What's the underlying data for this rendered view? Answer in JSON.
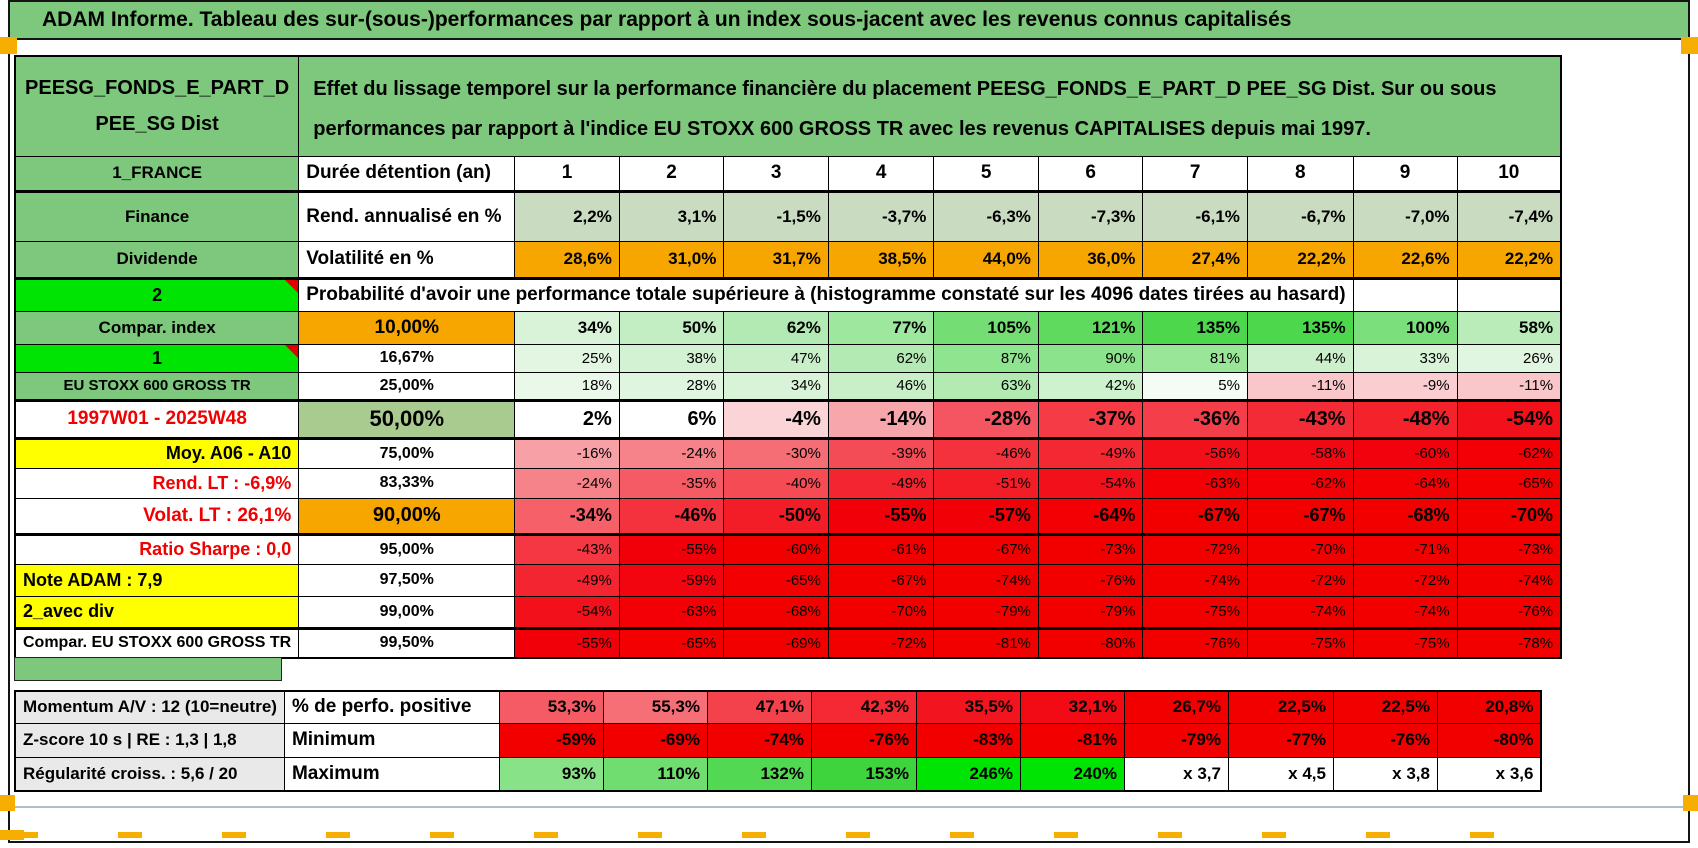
{
  "app": {
    "title": "ADAM Informe. Tableau des sur-(sous-)performances par rapport à un index sous-jacent avec les revenus connus capitalisés"
  },
  "colors": {
    "header_green": "#7DC87D",
    "bright_green": "#00E404",
    "orange": "#F7A600",
    "yellow": "#FFFF00",
    "sage": "#AACB90",
    "muted_row_green": "#C9DCC2",
    "full_red": "#F20000",
    "red_text": "#F00000",
    "gray_label": "#E9E9E9",
    "marker_orange": "#F6AE00"
  },
  "table": {
    "fund_name": "PEESG_FONDS_E_PART_D\nPEE_SG Dist",
    "description": "Effet du lissage temporel sur la performance financière du placement PEESG_FONDS_E_PART_D PEE_SG Dist. Sur ou sous performances par rapport à l'indice EU STOXX 600 GROSS TR avec les revenus CAPITALISES depuis mai 1997.",
    "duration_header": {
      "label": "1_FRANCE",
      "metric": "Durée détention (an)",
      "years": [
        "1",
        "2",
        "3",
        "4",
        "5",
        "6",
        "7",
        "8",
        "9",
        "10"
      ]
    },
    "metric_rows": [
      {
        "label": "Finance",
        "label_bg": "#7DC87D",
        "metric": "Rend. annualisé en %",
        "values": [
          "2,2%",
          "3,1%",
          "-1,5%",
          "-3,7%",
          "-6,3%",
          "-7,3%",
          "-6,1%",
          "-6,7%",
          "-7,0%",
          "-7,4%"
        ],
        "value_bgs": [
          "#C9DCC2",
          "#C9DCC2",
          "#C9DCC2",
          "#C9DCC2",
          "#C9DCC2",
          "#C9DCC2",
          "#C9DCC2",
          "#C9DCC2",
          "#C9DCC2",
          "#C9DCC2"
        ]
      },
      {
        "label": "Dividende",
        "label_bg": "#7DC87D",
        "metric": "Volatilité en %",
        "values": [
          "28,6%",
          "31,0%",
          "31,7%",
          "38,5%",
          "44,0%",
          "36,0%",
          "27,4%",
          "22,2%",
          "22,6%",
          "22,2%"
        ],
        "value_bgs": [
          "#F7A600",
          "#F7A600",
          "#F7A600",
          "#F7A600",
          "#F7A600",
          "#F7A600",
          "#F7A600",
          "#F7A600",
          "#F7A600",
          "#F7A600"
        ]
      }
    ],
    "probability_banner": {
      "label": "2",
      "label_bg": "#00E404",
      "comment_indicator": true,
      "text": "Probabilité d'avoir une performance totale supérieure à (histogramme constaté sur les 4096 dates tirées au hasard)"
    },
    "probability_rows": [
      {
        "label": "Compar. index",
        "label_bg": "#7DC87D",
        "label_color": "#000000",
        "threshold": "10,00%",
        "threshold_bg": "#F7A600",
        "values": [
          "34%",
          "50%",
          "62%",
          "77%",
          "105%",
          "121%",
          "135%",
          "135%",
          "100%",
          "58%"
        ],
        "value_bgs": [
          "#D8F3D8",
          "#C3EEC3",
          "#B3EAB3",
          "#9EE79E",
          "#74DE74",
          "#5FDA5F",
          "#4DD74D",
          "#4DD74D",
          "#7BDF7B",
          "#B9ECB9"
        ]
      },
      {
        "label": "1",
        "label_bg": "#00E404",
        "label_color": "#000000",
        "comment_indicator": true,
        "threshold": "16,67%",
        "threshold_bg": "#FFFFFF",
        "values": [
          "25%",
          "38%",
          "47%",
          "62%",
          "87%",
          "90%",
          "81%",
          "44%",
          "33%",
          "26%"
        ],
        "value_bgs": [
          "#E2F6E2",
          "#D3F2D3",
          "#C8EFC8",
          "#B3EAB3",
          "#8FE48F",
          "#8BE38B",
          "#99E699",
          "#CCF0CC",
          "#D9F3D9",
          "#E1F6E1"
        ]
      },
      {
        "label": "EU STOXX 600 GROSS TR",
        "label_bg": "#7DC87D",
        "label_color": "#000000",
        "threshold": "25,00%",
        "threshold_bg": "#FFFFFF",
        "values": [
          "18%",
          "28%",
          "34%",
          "46%",
          "63%",
          "42%",
          "5%",
          "-11%",
          "-9%",
          "-11%"
        ],
        "value_bgs": [
          "#EAF8EA",
          "#DFF5DF",
          "#D8F3D8",
          "#C9EFC9",
          "#B2EAB2",
          "#CEF1CE",
          "#F5FCF5",
          "#F9C7CA",
          "#FACDD0",
          "#F9C7CA"
        ]
      },
      {
        "label": "1997W01 - 2025W48",
        "label_bg": "#FFFFFF",
        "label_color": "#F00000",
        "threshold": "50,00%",
        "threshold_bg": "#AACB90",
        "values": [
          "2%",
          "6%",
          "-4%",
          "-14%",
          "-28%",
          "-37%",
          "-36%",
          "-43%",
          "-48%",
          "-54%"
        ],
        "value_bgs": [
          "#FFFFFF",
          "#FEFFFE",
          "#FAD4D7",
          "#F7A7AC",
          "#F45560",
          "#F43B46",
          "#F43E49",
          "#F32B36",
          "#F3222B",
          "#F2101A"
        ]
      },
      {
        "label": "Moy. A06 - A10",
        "label_bg": "#FFFF00",
        "label_color": "#000000",
        "threshold": "75,00%",
        "threshold_bg": "#FFFFFF",
        "values": [
          "-16%",
          "-24%",
          "-30%",
          "-39%",
          "-46%",
          "-49%",
          "-56%",
          "-58%",
          "-60%",
          "-62%"
        ],
        "value_bgs": [
          "#F7A1A7",
          "#F6838A",
          "#F56E76",
          "#F44C56",
          "#F3323D",
          "#F32832",
          "#F30F1A",
          "#F20813",
          "#F2020C",
          "#F20006"
        ]
      },
      {
        "label": "Rend. LT :   -6,9%",
        "label_bg": "#FFFFFF",
        "label_color": "#F00000",
        "threshold": "83,33%",
        "threshold_bg": "#FFFFFF",
        "values": [
          "-24%",
          "-35%",
          "-40%",
          "-49%",
          "-51%",
          "-54%",
          "-63%",
          "-62%",
          "-64%",
          "-65%"
        ],
        "value_bgs": [
          "#F6838A",
          "#F55B64",
          "#F44B55",
          "#F32530",
          "#F31D28",
          "#F2101A",
          "#F20005",
          "#F20006",
          "#F20004",
          "#F20002"
        ]
      },
      {
        "label": "Volat. LT :   26,1%",
        "label_bg": "#FFFFFF",
        "label_color": "#F00000",
        "threshold": "90,00%",
        "threshold_bg": "#F7A600",
        "values": [
          "-34%",
          "-46%",
          "-50%",
          "-55%",
          "-57%",
          "-64%",
          "-67%",
          "-67%",
          "-68%",
          "-70%"
        ],
        "value_bgs": [
          "#F56069",
          "#F3323D",
          "#F31D28",
          "#F2000A",
          "#F20008",
          "#F20004",
          "#F20000",
          "#F20000",
          "#F20000",
          "#F20000"
        ]
      },
      {
        "label": "Ratio Sharpe :   0,0",
        "label_bg": "#FFFFFF",
        "label_color": "#F00000",
        "threshold": "95,00%",
        "threshold_bg": "#FFFFFF",
        "values": [
          "-43%",
          "-55%",
          "-60%",
          "-61%",
          "-67%",
          "-73%",
          "-72%",
          "-70%",
          "-71%",
          "-73%"
        ],
        "value_bgs": [
          "#F43742",
          "#F2000A",
          "#F20000",
          "#F20000",
          "#F20000",
          "#F20000",
          "#F20000",
          "#F20000",
          "#F20000",
          "#F20000"
        ]
      },
      {
        "label": "Note ADAM : 7,9",
        "label_bg": "#FFFF00",
        "label_color": "#000000",
        "threshold": "97,50%",
        "threshold_bg": "#FFFFFF",
        "values": [
          "-49%",
          "-59%",
          "-65%",
          "-67%",
          "-74%",
          "-76%",
          "-74%",
          "-72%",
          "-72%",
          "-74%"
        ],
        "value_bgs": [
          "#F32530",
          "#F2050F",
          "#F20002",
          "#F20000",
          "#F20000",
          "#F20000",
          "#F20000",
          "#F20000",
          "#F20000",
          "#F20000"
        ]
      },
      {
        "label": "2_avec div",
        "label_bg": "#FFFF00",
        "label_color": "#000000",
        "threshold": "99,00%",
        "threshold_bg": "#FFFFFF",
        "values": [
          "-54%",
          "-63%",
          "-68%",
          "-70%",
          "-79%",
          "-79%",
          "-75%",
          "-74%",
          "-74%",
          "-76%"
        ],
        "value_bgs": [
          "#F2101A",
          "#F20005",
          "#F20000",
          "#F20000",
          "#F20000",
          "#F20000",
          "#F20000",
          "#F20000",
          "#F20000",
          "#F20000"
        ]
      },
      {
        "label": "Compar. EU STOXX 600 GROSS TR",
        "label_bg": "#FFFFFF",
        "label_color": "#000000",
        "threshold": "99,50%",
        "threshold_bg": "#FFFFFF",
        "values": [
          "-55%",
          "-65%",
          "-69%",
          "-72%",
          "-81%",
          "-80%",
          "-76%",
          "-75%",
          "-75%",
          "-78%"
        ],
        "value_bgs": [
          "#F2000A",
          "#F20002",
          "#F20000",
          "#F20000",
          "#F20000",
          "#F20000",
          "#F20000",
          "#F20000",
          "#F20000",
          "#F20000"
        ]
      }
    ],
    "footer_rows": [
      {
        "label": "Momentum A/V : 12 (10=neutre)",
        "label_bg": "#E9E9E9",
        "metric": "% de perfo. positive",
        "values": [
          "53,3%",
          "55,3%",
          "47,1%",
          "42,3%",
          "35,5%",
          "32,1%",
          "26,7%",
          "22,5%",
          "22,5%",
          "20,8%"
        ],
        "value_bgs": [
          "#F55B64",
          "#F66F77",
          "#F4424D",
          "#F42933",
          "#F2141E",
          "#F20B15",
          "#F20000",
          "#F20000",
          "#F20000",
          "#F20000"
        ]
      },
      {
        "label": "Z-score 10 s | RE : 1,3 | 1,8",
        "label_bg": "#E9E9E9",
        "metric": "Minimum",
        "values": [
          "-59%",
          "-69%",
          "-74%",
          "-76%",
          "-83%",
          "-81%",
          "-79%",
          "-77%",
          "-76%",
          "-80%"
        ],
        "value_bgs": [
          "#F20000",
          "#F20000",
          "#F20000",
          "#F20000",
          "#F20000",
          "#F20000",
          "#F20000",
          "#F20000",
          "#F20000",
          "#F20000"
        ]
      },
      {
        "label": "Régularité croiss. : 5,6 / 20",
        "label_bg": "#E9E9E9",
        "metric": "Maximum",
        "values": [
          "93%",
          "110%",
          "132%",
          "153%",
          "246%",
          "240%",
          "x 3,7",
          "x 4,5",
          "x 3,8",
          "x 3,6"
        ],
        "value_bgs": [
          "#88E288",
          "#6FDD6F",
          "#53D853",
          "#3ED43E",
          "#00E404",
          "#00E404",
          "#FFFFFF",
          "#FFFFFF",
          "#FFFFFF",
          "#FFFFFF"
        ]
      }
    ]
  }
}
